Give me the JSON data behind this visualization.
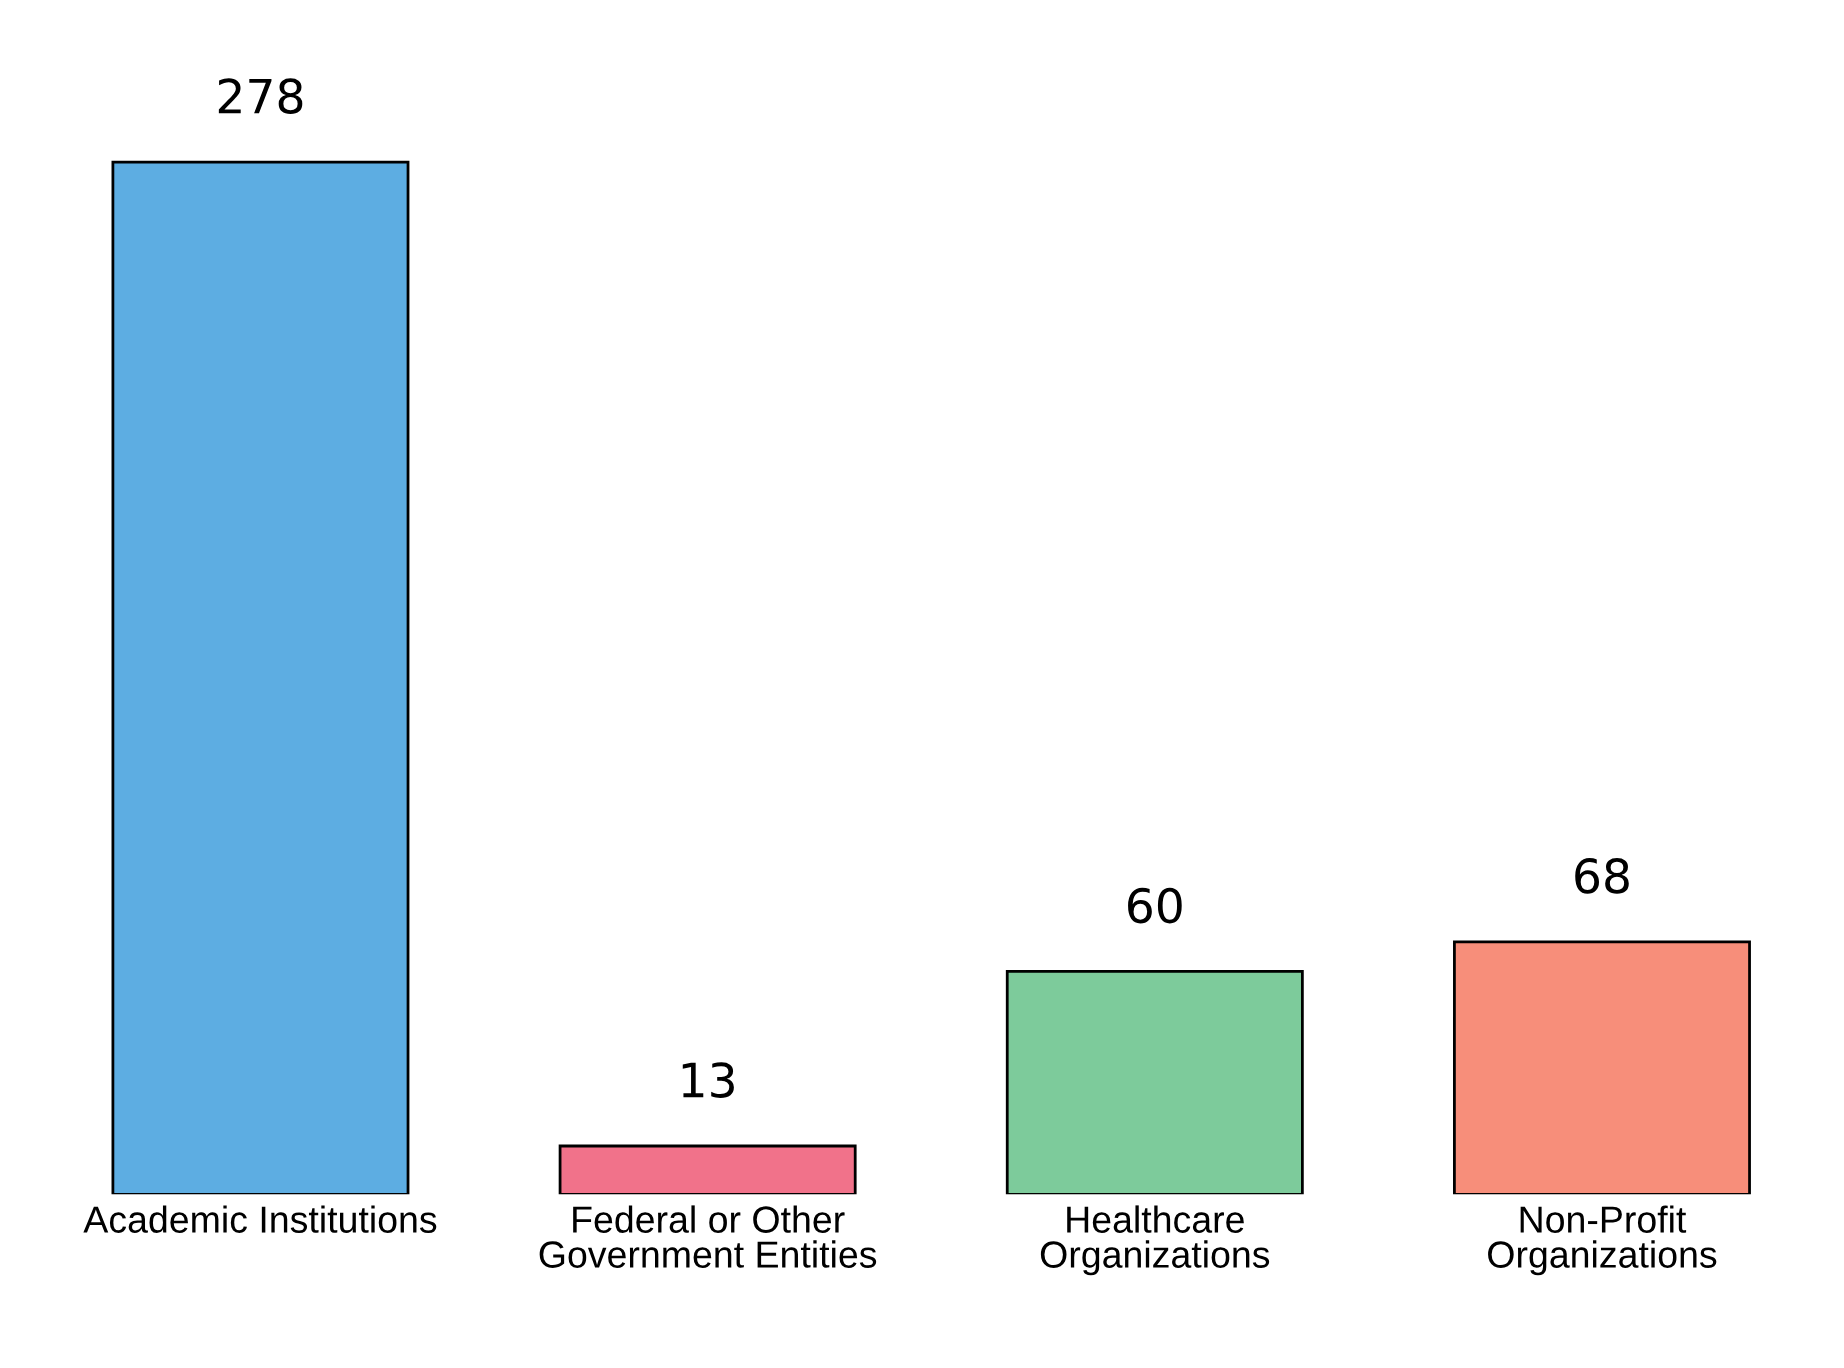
{
  "chart_data": {
    "type": "bar",
    "categories": [
      "Academic Institutions",
      "Federal or Other\nGovernment Entities",
      "Healthcare\nOrganizations",
      "Non-Profit\nOrganizations"
    ],
    "values": [
      278,
      13,
      60,
      68
    ],
    "colors": [
      "#5dade2",
      "#f1728a",
      "#7dcb9b",
      "#f78e7a"
    ],
    "data_labels": true,
    "grid": false,
    "legend": false
  }
}
